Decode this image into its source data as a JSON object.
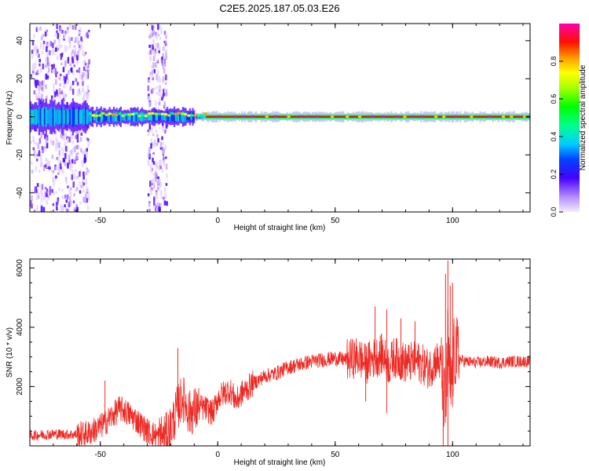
{
  "title": "C2E5.2025.187.05.03.E26",
  "colors": {
    "snr_line": "#ee2a24",
    "axis": "#000000",
    "background": "#ffffff"
  },
  "chart_data": [
    {
      "type": "heatmap",
      "xlabel": "Height of straight line (km)",
      "ylabel": "Frequency (Hz)",
      "xlim": [
        -80,
        133
      ],
      "ylim": [
        -50,
        49
      ],
      "xticks": [
        -50,
        0,
        50,
        100
      ],
      "yticks": [
        -40,
        -20,
        0,
        20,
        40
      ],
      "colorbar": {
        "label": "Normalized spectral amplitude",
        "range": [
          0,
          1
        ],
        "ticks": [
          0.0,
          0.2,
          0.4,
          0.6,
          0.8
        ],
        "colormap": "purple-blue-cyan-green-yellow-orange-red-magenta",
        "placement": "right"
      },
      "features": {
        "carrier_frequency_hz": 0,
        "scattered_noise_region_km": [
          -80,
          -55
        ],
        "second_noise_band_km": [
          -30,
          -22
        ],
        "strong_narrow_line_from_km": -5
      }
    },
    {
      "type": "line",
      "xlabel": "Height of straight line (km)",
      "ylabel": "SNR (10 * v/v)",
      "xlim": [
        -80,
        133
      ],
      "ylim": [
        0,
        6300
      ],
      "xticks": [
        -50,
        0,
        50,
        100
      ],
      "yticks": [
        2000,
        4000,
        6000
      ],
      "series": [
        {
          "x": [
            -80,
            -70,
            -60,
            -55,
            -50,
            -45,
            -42,
            -40,
            -35,
            -30,
            -25,
            -22,
            -20,
            -17,
            -15,
            -12,
            -10,
            -7,
            -5,
            -2,
            0,
            3,
            5,
            8,
            10,
            15,
            20,
            25,
            30,
            40,
            50,
            55,
            60,
            63,
            65,
            70,
            73,
            75,
            80,
            85,
            90,
            93,
            95,
            97,
            98,
            99,
            100,
            101,
            102,
            105,
            110,
            115,
            120,
            125,
            133
          ],
          "y": [
            350,
            400,
            380,
            420,
            650,
            1000,
            1250,
            1200,
            900,
            500,
            300,
            320,
            600,
            1300,
            1650,
            1100,
            1200,
            1300,
            1250,
            1100,
            1600,
            1800,
            1900,
            1500,
            1750,
            2100,
            2350,
            2450,
            2650,
            2850,
            2950,
            2900,
            3000,
            2750,
            2900,
            3100,
            2700,
            3000,
            2800,
            2850,
            2600,
            2900,
            2750,
            1000,
            3500,
            1800,
            2400,
            3300,
            2950,
            2850,
            2800,
            2850,
            2800,
            2850,
            2850
          ]
        }
      ],
      "spikes": [
        {
          "x": -48,
          "y": 2200
        },
        {
          "x": -17,
          "y": 3300
        },
        {
          "x": 67,
          "y": 4700
        },
        {
          "x": 72,
          "y": 4600
        },
        {
          "x": 78,
          "y": 4300
        },
        {
          "x": 84,
          "y": 4200
        },
        {
          "x": 97,
          "y": 5800
        },
        {
          "x": 98,
          "y": 6250
        },
        {
          "x": 99,
          "y": 5400
        },
        {
          "x": 100,
          "y": 5500
        },
        {
          "x": 96,
          "y": 0
        },
        {
          "x": 98,
          "y": 0
        },
        {
          "x": 72,
          "y": 1100
        },
        {
          "x": 63,
          "y": 1500
        }
      ]
    }
  ]
}
